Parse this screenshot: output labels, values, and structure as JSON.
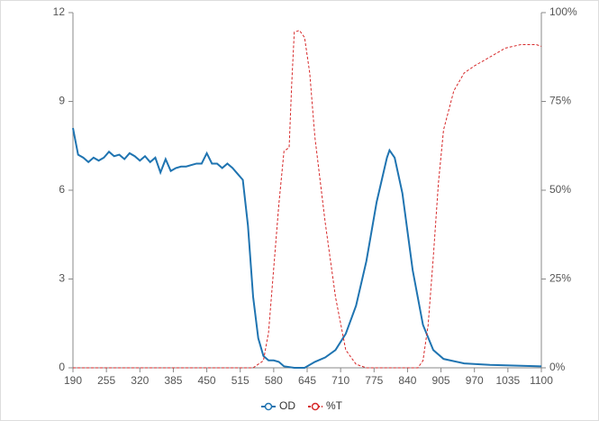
{
  "chart_data": {
    "type": "line",
    "xlim": [
      190,
      1100
    ],
    "xticks": [
      190,
      255,
      320,
      385,
      450,
      515,
      580,
      645,
      710,
      775,
      840,
      905,
      970,
      1035,
      1100
    ],
    "ylim": [
      0,
      12
    ],
    "yticks": [
      0,
      3,
      6,
      9,
      12
    ],
    "y2lim": [
      0,
      100
    ],
    "y2ticks": [
      {
        "value": 0,
        "label": "0%"
      },
      {
        "value": 25,
        "label": "25%"
      },
      {
        "value": 50,
        "label": "50%"
      },
      {
        "value": 75,
        "label": "75%"
      },
      {
        "value": 100,
        "label": "100%"
      }
    ],
    "legend": "bottom",
    "series": [
      {
        "name": "OD",
        "color": "#1f74b1",
        "dash": false,
        "x": [
          190,
          200,
          210,
          220,
          230,
          240,
          250,
          260,
          270,
          280,
          290,
          300,
          310,
          320,
          330,
          340,
          350,
          360,
          370,
          380,
          390,
          400,
          410,
          420,
          430,
          440,
          450,
          460,
          470,
          480,
          490,
          500,
          510,
          520,
          530,
          540,
          550,
          560,
          570,
          580,
          590,
          600,
          620,
          640,
          660,
          680,
          700,
          720,
          740,
          760,
          780,
          790,
          800,
          805,
          815,
          830,
          850,
          870,
          890,
          910,
          950,
          1000,
          1100
        ],
        "values": [
          8.1,
          7.2,
          7.1,
          6.95,
          7.1,
          7.0,
          7.1,
          7.3,
          7.15,
          7.2,
          7.05,
          7.25,
          7.15,
          7.0,
          7.15,
          6.95,
          7.1,
          6.6,
          7.05,
          6.65,
          6.75,
          6.8,
          6.8,
          6.85,
          6.9,
          6.9,
          7.25,
          6.9,
          6.9,
          6.75,
          6.9,
          6.75,
          6.55,
          6.35,
          4.8,
          2.4,
          1.0,
          0.4,
          0.25,
          0.25,
          0.2,
          0.05,
          0.0,
          0.0,
          0.2,
          0.35,
          0.6,
          1.15,
          2.1,
          3.6,
          5.6,
          6.35,
          7.1,
          7.35,
          7.1,
          5.9,
          3.3,
          1.45,
          0.6,
          0.3,
          0.15,
          0.1,
          0.05
        ]
      },
      {
        "name": "%T",
        "color": "#d62728",
        "dash": true,
        "axis": "y2",
        "x": [
          190,
          540,
          560,
          570,
          580,
          590,
          600,
          610,
          615,
          620,
          630,
          640,
          650,
          660,
          680,
          700,
          720,
          740,
          760,
          860,
          870,
          880,
          890,
          900,
          910,
          930,
          950,
          970,
          1000,
          1030,
          1060,
          1090,
          1100
        ],
        "values": [
          0,
          0,
          2,
          10,
          28,
          46,
          61,
          62,
          80,
          94.5,
          95,
          93,
          83,
          65,
          41,
          20,
          5,
          1,
          0,
          0,
          2,
          12,
          31,
          52,
          67,
          78,
          83,
          85,
          87.5,
          90,
          91,
          91,
          90.5
        ]
      }
    ]
  }
}
